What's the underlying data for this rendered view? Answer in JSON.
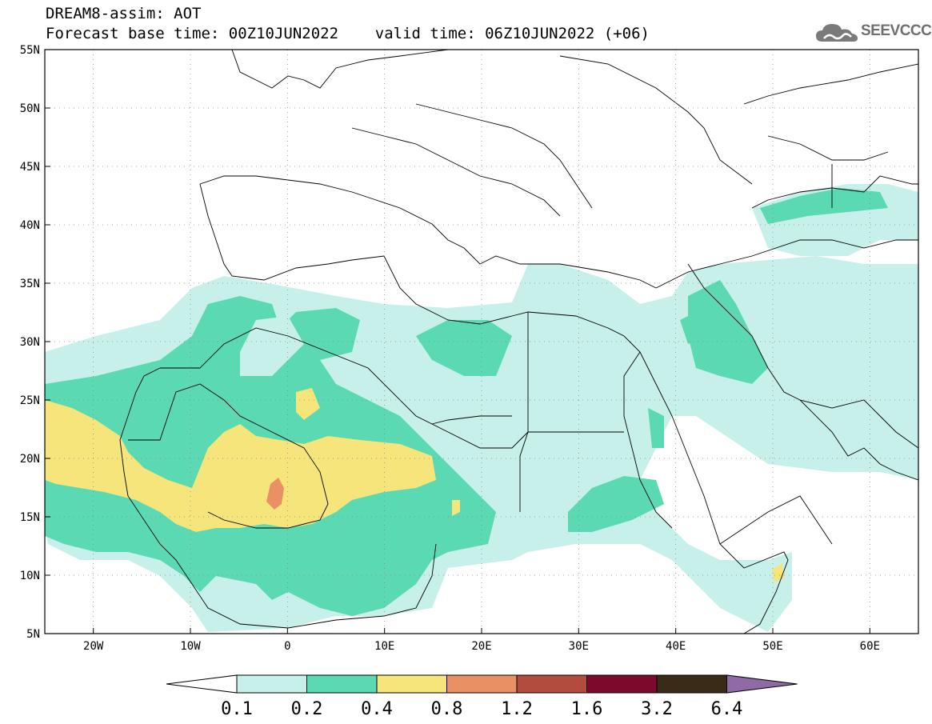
{
  "title": {
    "line1": "DREAM8-assim: AOT",
    "line2": "Forecast base time: 00Z10JUN2022    valid time: 06Z10JUN2022 (+06)"
  },
  "logo": {
    "text": "SEEVCCC",
    "icon": "cloud-icon"
  },
  "map": {
    "lon_range": [
      -25,
      65
    ],
    "lat_range": [
      5,
      55
    ],
    "lon_ticks": [
      {
        "value": -20,
        "label": "20W"
      },
      {
        "value": -10,
        "label": "10W"
      },
      {
        "value": 0,
        "label": "0"
      },
      {
        "value": 10,
        "label": "10E"
      },
      {
        "value": 20,
        "label": "20E"
      },
      {
        "value": 30,
        "label": "30E"
      },
      {
        "value": 40,
        "label": "40E"
      },
      {
        "value": 50,
        "label": "50E"
      },
      {
        "value": 60,
        "label": "60E"
      }
    ],
    "lat_ticks": [
      {
        "value": 55,
        "label": "55N"
      },
      {
        "value": 50,
        "label": "50N"
      },
      {
        "value": 45,
        "label": "45N"
      },
      {
        "value": 40,
        "label": "40N"
      },
      {
        "value": 35,
        "label": "35N"
      },
      {
        "value": 30,
        "label": "30N"
      },
      {
        "value": 25,
        "label": "25N"
      },
      {
        "value": 20,
        "label": "20N"
      },
      {
        "value": 15,
        "label": "15N"
      },
      {
        "value": 10,
        "label": "10N"
      },
      {
        "value": 5,
        "label": "5N"
      }
    ],
    "grid": "dotted"
  },
  "colorbar": {
    "labels": [
      "0.1",
      "0.2",
      "0.4",
      "0.8",
      "1.2",
      "1.6",
      "3.2",
      "6.4"
    ],
    "colors": [
      "#ffffff",
      "#c8f0ea",
      "#5ad9b2",
      "#f5e57a",
      "#e99065",
      "#b24c3e",
      "#7d0a2c",
      "#3a2a18",
      "#8f6aa7"
    ]
  }
}
